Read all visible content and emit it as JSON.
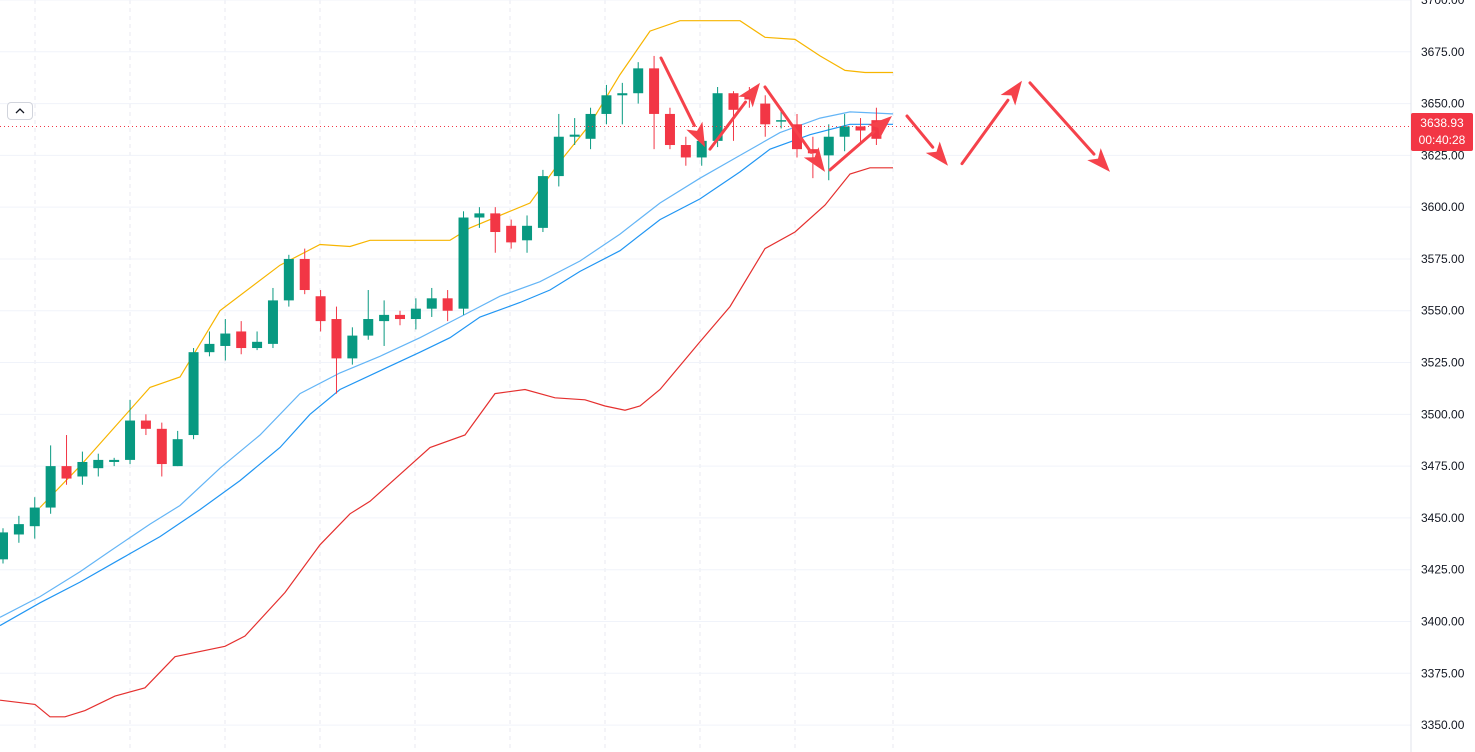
{
  "chart_data": {
    "type": "candlestick",
    "ylim": [
      3337,
      3700
    ],
    "y_ticks": [
      "3350.00",
      "3375.00",
      "3400.00",
      "3425.00",
      "3450.00",
      "3475.00",
      "3500.00",
      "3525.00",
      "3550.00",
      "3575.00",
      "3600.00",
      "3625.00",
      "3650.00",
      "3675.00",
      "3700.00"
    ],
    "current_price": "3638.93",
    "countdown": "00:40:28",
    "colors": {
      "up": "#089981",
      "down": "#f23645",
      "upper_band": "#f7b500",
      "lower_band": "#e5302f",
      "ma_fast": "#64b5f6",
      "ma_slow": "#2196f3",
      "arrows": "#f5424b",
      "grid": "#f0f3fa"
    },
    "candles": [
      [
        3430,
        3443,
        3445,
        3428
      ],
      [
        3442,
        3447,
        3451,
        3438
      ],
      [
        3446,
        3455,
        3460,
        3440
      ],
      [
        3455,
        3475,
        3485,
        3452
      ],
      [
        3475,
        3469,
        3490,
        3466
      ],
      [
        3470,
        3477,
        3482,
        3466
      ],
      [
        3474,
        3478,
        3481,
        3470
      ],
      [
        3477,
        3478,
        3479,
        3475
      ],
      [
        3478,
        3497,
        3507,
        3476
      ],
      [
        3497,
        3493,
        3500,
        3490
      ],
      [
        3493,
        3476,
        3496,
        3470
      ],
      [
        3475,
        3488,
        3492,
        3475
      ],
      [
        3490,
        3530,
        3532,
        3488
      ],
      [
        3530,
        3534,
        3540,
        3528
      ],
      [
        3533,
        3539,
        3546,
        3526
      ],
      [
        3540,
        3532,
        3545,
        3529
      ],
      [
        3532,
        3535,
        3540,
        3531
      ],
      [
        3534,
        3555,
        3561,
        3532
      ],
      [
        3555,
        3575,
        3577,
        3552
      ],
      [
        3575,
        3560,
        3580,
        3558
      ],
      [
        3557,
        3545,
        3560,
        3540
      ],
      [
        3546,
        3527,
        3552,
        3510
      ],
      [
        3527,
        3538,
        3542,
        3524
      ],
      [
        3538,
        3546,
        3560,
        3536
      ],
      [
        3545,
        3548,
        3555,
        3533
      ],
      [
        3548,
        3546,
        3550,
        3543
      ],
      [
        3546,
        3551,
        3556,
        3541
      ],
      [
        3551,
        3556,
        3561,
        3547
      ],
      [
        3556,
        3550,
        3560,
        3545
      ],
      [
        3551,
        3595,
        3598,
        3548
      ],
      [
        3595,
        3597,
        3600,
        3590
      ],
      [
        3597,
        3588,
        3600,
        3578
      ],
      [
        3591,
        3583,
        3594,
        3580
      ],
      [
        3584,
        3591,
        3596,
        3578
      ],
      [
        3590,
        3615,
        3618,
        3588
      ],
      [
        3615,
        3634,
        3645,
        3610
      ],
      [
        3634,
        3635,
        3643,
        3630
      ],
      [
        3633,
        3645,
        3648,
        3628
      ],
      [
        3645,
        3654,
        3659,
        3640
      ],
      [
        3654,
        3655,
        3660,
        3640
      ],
      [
        3655,
        3667,
        3670,
        3650
      ],
      [
        3667,
        3645,
        3673,
        3628
      ],
      [
        3645,
        3630,
        3648,
        3628
      ],
      [
        3630,
        3624,
        3634,
        3620
      ],
      [
        3624,
        3632,
        3637,
        3620
      ],
      [
        3632,
        3655,
        3658,
        3629
      ],
      [
        3655,
        3647,
        3656,
        3632
      ],
      [
        3655,
        3652,
        3658,
        3648
      ],
      [
        3650,
        3640,
        3654,
        3634
      ],
      [
        3642,
        3642,
        3648,
        3638
      ],
      [
        3640,
        3628,
        3645,
        3624
      ],
      [
        3628,
        3626,
        3634,
        3614
      ],
      [
        3625,
        3634,
        3640,
        3613
      ],
      [
        3634,
        3639,
        3645,
        3627
      ],
      [
        3639,
        3637,
        3643,
        3630
      ],
      [
        3642,
        3633,
        3648,
        3630
      ]
    ],
    "upper_band": [
      [
        40,
        3455
      ],
      [
        80,
        3475
      ],
      [
        150,
        3513
      ],
      [
        180,
        3518
      ],
      [
        220,
        3550
      ],
      [
        280,
        3572
      ],
      [
        320,
        3582
      ],
      [
        350,
        3581
      ],
      [
        370,
        3584
      ],
      [
        430,
        3584
      ],
      [
        450,
        3584
      ],
      [
        470,
        3590
      ],
      [
        500,
        3596
      ],
      [
        530,
        3602
      ],
      [
        560,
        3622
      ],
      [
        590,
        3640
      ],
      [
        620,
        3664
      ],
      [
        650,
        3685
      ],
      [
        680,
        3690
      ],
      [
        740,
        3690
      ],
      [
        765,
        3682
      ],
      [
        795,
        3681
      ],
      [
        820,
        3673
      ],
      [
        845,
        3666
      ],
      [
        865,
        3665
      ],
      [
        893,
        3665
      ]
    ],
    "lower_band": [
      [
        0,
        3362
      ],
      [
        35,
        3360
      ],
      [
        50,
        3354
      ],
      [
        65,
        3354
      ],
      [
        85,
        3357
      ],
      [
        115,
        3364
      ],
      [
        145,
        3368
      ],
      [
        175,
        3383
      ],
      [
        225,
        3388
      ],
      [
        245,
        3393
      ],
      [
        285,
        3414
      ],
      [
        320,
        3437
      ],
      [
        350,
        3452
      ],
      [
        370,
        3458
      ],
      [
        400,
        3471
      ],
      [
        430,
        3484
      ],
      [
        465,
        3490
      ],
      [
        495,
        3510
      ],
      [
        525,
        3512
      ],
      [
        555,
        3508
      ],
      [
        585,
        3507
      ],
      [
        605,
        3504
      ],
      [
        625,
        3502
      ],
      [
        640,
        3504
      ],
      [
        660,
        3512
      ],
      [
        700,
        3535
      ],
      [
        730,
        3552
      ],
      [
        765,
        3580
      ],
      [
        795,
        3588
      ],
      [
        825,
        3601
      ],
      [
        850,
        3616
      ],
      [
        870,
        3619
      ],
      [
        893,
        3619
      ]
    ],
    "ma_fast": [
      [
        0,
        3402
      ],
      [
        40,
        3412
      ],
      [
        80,
        3424
      ],
      [
        110,
        3434
      ],
      [
        150,
        3447
      ],
      [
        180,
        3456
      ],
      [
        220,
        3474
      ],
      [
        260,
        3490
      ],
      [
        300,
        3510
      ],
      [
        340,
        3520
      ],
      [
        380,
        3528
      ],
      [
        420,
        3537
      ],
      [
        460,
        3547
      ],
      [
        500,
        3557
      ],
      [
        540,
        3564
      ],
      [
        580,
        3574
      ],
      [
        620,
        3587
      ],
      [
        660,
        3602
      ],
      [
        700,
        3614
      ],
      [
        740,
        3625
      ],
      [
        780,
        3636
      ],
      [
        820,
        3643
      ],
      [
        850,
        3646
      ],
      [
        893,
        3645
      ]
    ],
    "ma_slow": [
      [
        0,
        3398
      ],
      [
        40,
        3409
      ],
      [
        80,
        3419
      ],
      [
        120,
        3430
      ],
      [
        160,
        3441
      ],
      [
        200,
        3454
      ],
      [
        240,
        3468
      ],
      [
        280,
        3484
      ],
      [
        310,
        3500
      ],
      [
        340,
        3512
      ],
      [
        380,
        3521
      ],
      [
        420,
        3530
      ],
      [
        450,
        3537
      ],
      [
        480,
        3547
      ],
      [
        520,
        3554
      ],
      [
        550,
        3560
      ],
      [
        580,
        3569
      ],
      [
        620,
        3579
      ],
      [
        660,
        3594
      ],
      [
        700,
        3604
      ],
      [
        740,
        3617
      ],
      [
        770,
        3628
      ],
      [
        810,
        3635
      ],
      [
        850,
        3640
      ],
      [
        893,
        3640
      ]
    ],
    "arrow_lines": [
      [
        [
          661,
          3672
        ],
        [
          705,
          3629
        ]
      ],
      [
        [
          710,
          3628
        ],
        [
          760,
          3660
        ]
      ],
      [
        [
          765,
          3658
        ],
        [
          825,
          3617
        ]
      ],
      [
        [
          830,
          3618
        ],
        [
          892,
          3644
        ]
      ],
      [
        [
          907,
          3644
        ],
        [
          948,
          3620
        ]
      ],
      [
        [
          962,
          3621
        ],
        [
          1022,
          3661
        ]
      ],
      [
        [
          1030,
          3660
        ],
        [
          1110,
          3617
        ]
      ]
    ]
  }
}
